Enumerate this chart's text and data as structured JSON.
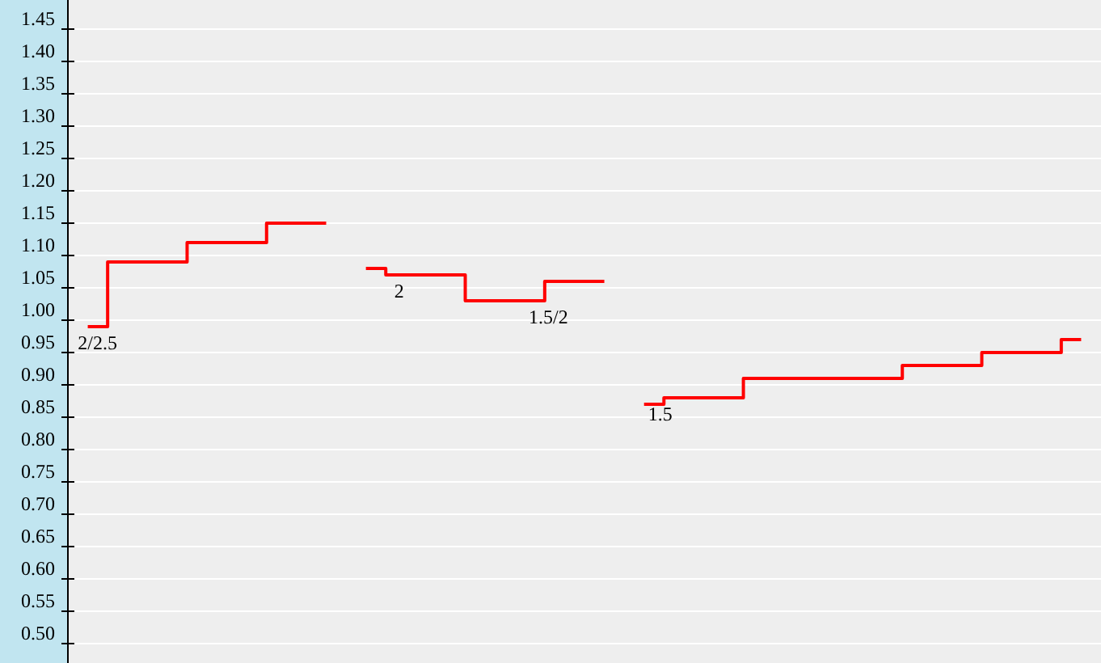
{
  "chart_data": {
    "type": "step",
    "categories": [
      null,
      null,
      null,
      null,
      null,
      null,
      null,
      null,
      null,
      null,
      null,
      null,
      null,
      null,
      null,
      null,
      null,
      null,
      null,
      null,
      null,
      null,
      null,
      null,
      null,
      null
    ],
    "ylim": [
      0.47,
      1.495
    ],
    "yticks": [
      {
        "value": 0.5,
        "label": "0.50"
      },
      {
        "value": 0.55,
        "label": "0.55"
      },
      {
        "value": 0.6,
        "label": "0.60"
      },
      {
        "value": 0.65,
        "label": "0.65"
      },
      {
        "value": 0.7,
        "label": "0.70"
      },
      {
        "value": 0.75,
        "label": "0.75"
      },
      {
        "value": 0.8,
        "label": "0.80"
      },
      {
        "value": 0.85,
        "label": "0.85"
      },
      {
        "value": 0.9,
        "label": "0.90"
      },
      {
        "value": 0.95,
        "label": "0.95"
      },
      {
        "value": 1.0,
        "label": "1.00"
      },
      {
        "value": 1.05,
        "label": "1.05"
      },
      {
        "value": 1.1,
        "label": "1.10"
      },
      {
        "value": 1.15,
        "label": "1.15"
      },
      {
        "value": 1.2,
        "label": "1.20"
      },
      {
        "value": 1.25,
        "label": "1.25"
      },
      {
        "value": 1.3,
        "label": "1.30"
      },
      {
        "value": 1.35,
        "label": "1.35"
      },
      {
        "value": 1.4,
        "label": "1.40"
      },
      {
        "value": 1.45,
        "label": "1.45"
      }
    ],
    "tick_labels": "y",
    "grid": "y",
    "marker": "none",
    "line_style": "solid",
    "series": [
      {
        "color": "#ff0000",
        "values": [
          0.99,
          1.09,
          1.09,
          1.12,
          1.12,
          1.15,
          1.15,
          null,
          null,
          null,
          null,
          null,
          null,
          null,
          null,
          null,
          null,
          null,
          null,
          null,
          null,
          null,
          null,
          null,
          null,
          null
        ]
      },
      {
        "color": "#ff0000",
        "values": [
          null,
          null,
          null,
          null,
          null,
          null,
          null,
          1.08,
          1.07,
          1.07,
          1.03,
          1.03,
          1.06,
          1.06,
          null,
          null,
          null,
          null,
          null,
          null,
          null,
          null,
          null,
          null,
          null,
          null
        ]
      },
      {
        "color": "#ff0000",
        "values": [
          null,
          null,
          null,
          null,
          null,
          null,
          null,
          null,
          null,
          null,
          null,
          null,
          null,
          null,
          0.87,
          0.88,
          0.88,
          0.91,
          0.91,
          0.91,
          0.91,
          0.93,
          0.93,
          0.95,
          0.95,
          0.97
        ]
      }
    ],
    "annotations": [
      {
        "text": "2/2.5",
        "y": 0.99
      },
      {
        "text": "2",
        "y": 1.07
      },
      {
        "text": "1.5/2",
        "y": 1.03
      },
      {
        "text": "1.5",
        "y": 0.88
      }
    ]
  }
}
